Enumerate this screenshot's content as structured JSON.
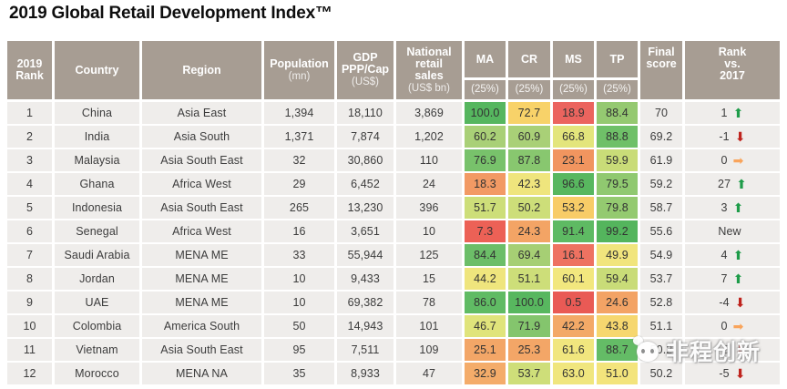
{
  "title": "2019 Global Retail Development Index™",
  "chart_data": {
    "type": "table",
    "title": "2019 Global Retail Development Index™",
    "columns": [
      {
        "label": "2019\nRank",
        "sub": ""
      },
      {
        "label": "Country",
        "sub": ""
      },
      {
        "label": "Region",
        "sub": ""
      },
      {
        "label": "Population",
        "sub": "(mn)"
      },
      {
        "label": "GDP\nPPP/Cap",
        "sub": "(US$)"
      },
      {
        "label": "National\nretail\nsales",
        "sub": "(US$ bn)"
      },
      {
        "label": "MA",
        "sub": "(25%)"
      },
      {
        "label": "CR",
        "sub": "(25%)"
      },
      {
        "label": "MS",
        "sub": "(25%)"
      },
      {
        "label": "TP",
        "sub": "(25%)"
      },
      {
        "label": "Final\nscore",
        "sub": ""
      },
      {
        "label": "Rank\nvs.\n2017",
        "sub": ""
      }
    ],
    "rows": [
      {
        "rank": "1",
        "country": "China",
        "region": "Asia East",
        "population": "1,394",
        "gdp": "18,110",
        "retail": "3,869",
        "scores": {
          "ma": {
            "value": "100.0",
            "color": "#56b65f"
          },
          "cr": {
            "value": "72.7",
            "color": "#f8d269"
          },
          "ms": {
            "value": "18.9",
            "color": "#eb645e"
          },
          "tp": {
            "value": "88.4",
            "color": "#95c971"
          }
        },
        "final": "70",
        "change": {
          "value": "1",
          "dir": "up"
        }
      },
      {
        "rank": "2",
        "country": "India",
        "region": "Asia South",
        "population": "1,371",
        "gdp": "7,874",
        "retail": "1,202",
        "scores": {
          "ma": {
            "value": "60.2",
            "color": "#a9d077"
          },
          "cr": {
            "value": "60.9",
            "color": "#a9d077"
          },
          "ms": {
            "value": "66.8",
            "color": "#e3e57c"
          },
          "tp": {
            "value": "88.8",
            "color": "#6fc068"
          }
        },
        "final": "69.2",
        "change": {
          "value": "-1",
          "dir": "down"
        }
      },
      {
        "rank": "3",
        "country": "Malaysia",
        "region": "Asia South East",
        "population": "32",
        "gdp": "30,860",
        "retail": "110",
        "scores": {
          "ma": {
            "value": "76.9",
            "color": "#78c26b"
          },
          "cr": {
            "value": "87.8",
            "color": "#88c76f"
          },
          "ms": {
            "value": "23.1",
            "color": "#f1955f"
          },
          "tp": {
            "value": "59.9",
            "color": "#c9dc78"
          }
        },
        "final": "61.9",
        "change": {
          "value": "0",
          "dir": "right"
        }
      },
      {
        "rank": "4",
        "country": "Ghana",
        "region": "Africa West",
        "population": "29",
        "gdp": "6,452",
        "retail": "24",
        "scores": {
          "ma": {
            "value": "18.3",
            "color": "#f29a64"
          },
          "cr": {
            "value": "42.3",
            "color": "#efe57d"
          },
          "ms": {
            "value": "96.6",
            "color": "#58b75f"
          },
          "tp": {
            "value": "79.5",
            "color": "#90c970"
          }
        },
        "final": "59.2",
        "change": {
          "value": "27",
          "dir": "up"
        }
      },
      {
        "rank": "5",
        "country": "Indonesia",
        "region": "Asia South East",
        "population": "265",
        "gdp": "13,230",
        "retail": "396",
        "scores": {
          "ma": {
            "value": "51.7",
            "color": "#cdde79"
          },
          "cr": {
            "value": "50.2",
            "color": "#cdde79"
          },
          "ms": {
            "value": "53.2",
            "color": "#f8cc67"
          },
          "tp": {
            "value": "79.8",
            "color": "#94ca70"
          }
        },
        "final": "58.7",
        "change": {
          "value": "3",
          "dir": "up"
        }
      },
      {
        "rank": "6",
        "country": "Senegal",
        "region": "Africa West",
        "population": "16",
        "gdp": "3,651",
        "retail": "10",
        "scores": {
          "ma": {
            "value": "7.3",
            "color": "#ec6156"
          },
          "cr": {
            "value": "24.3",
            "color": "#f3a465"
          },
          "ms": {
            "value": "91.4",
            "color": "#5eba63"
          },
          "tp": {
            "value": "99.2",
            "color": "#54b55d"
          }
        },
        "final": "55.6",
        "change": {
          "value": "New",
          "dir": "none"
        }
      },
      {
        "rank": "7",
        "country": "Saudi Arabia",
        "region": "MENA ME",
        "population": "33",
        "gdp": "55,944",
        "retail": "125",
        "scores": {
          "ma": {
            "value": "84.4",
            "color": "#6cbe68"
          },
          "cr": {
            "value": "69.4",
            "color": "#a6cf74"
          },
          "ms": {
            "value": "16.1",
            "color": "#ee7261"
          },
          "tp": {
            "value": "49.9",
            "color": "#f1e57d"
          }
        },
        "final": "54.9",
        "change": {
          "value": "4",
          "dir": "up"
        }
      },
      {
        "rank": "8",
        "country": "Jordan",
        "region": "MENA ME",
        "population": "10",
        "gdp": "9,433",
        "retail": "15",
        "scores": {
          "ma": {
            "value": "44.2",
            "color": "#efe57d"
          },
          "cr": {
            "value": "51.1",
            "color": "#cdde79"
          },
          "ms": {
            "value": "60.1",
            "color": "#f2e77e"
          },
          "tp": {
            "value": "59.4",
            "color": "#c9dc78"
          }
        },
        "final": "53.7",
        "change": {
          "value": "7",
          "dir": "up"
        }
      },
      {
        "rank": "9",
        "country": "UAE",
        "region": "MENA ME",
        "population": "10",
        "gdp": "69,382",
        "retail": "78",
        "scores": {
          "ma": {
            "value": "86.0",
            "color": "#60bb64"
          },
          "cr": {
            "value": "100.0",
            "color": "#58b75f"
          },
          "ms": {
            "value": "0.5",
            "color": "#e95a55"
          },
          "tp": {
            "value": "24.6",
            "color": "#f3a365"
          }
        },
        "final": "52.8",
        "change": {
          "value": "-4",
          "dir": "down"
        }
      },
      {
        "rank": "10",
        "country": "Colombia",
        "region": "America South",
        "population": "50",
        "gdp": "14,943",
        "retail": "101",
        "scores": {
          "ma": {
            "value": "46.7",
            "color": "#e0e47b"
          },
          "cr": {
            "value": "71.9",
            "color": "#84c56d"
          },
          "ms": {
            "value": "42.2",
            "color": "#f3a967"
          },
          "tp": {
            "value": "43.8",
            "color": "#f6d76f"
          }
        },
        "final": "51.1",
        "change": {
          "value": "0",
          "dir": "right"
        }
      },
      {
        "rank": "11",
        "country": "Vietnam",
        "region": "Asia South East",
        "population": "95",
        "gdp": "7,511",
        "retail": "109",
        "scores": {
          "ma": {
            "value": "25.1",
            "color": "#f3a667"
          },
          "cr": {
            "value": "25.3",
            "color": "#f3a667"
          },
          "ms": {
            "value": "61.6",
            "color": "#f1e67e"
          },
          "tp": {
            "value": "88.7",
            "color": "#64bc66"
          }
        },
        "final": "50.2",
        "change": {
          "value": "-5",
          "dir": "down"
        }
      },
      {
        "rank": "12",
        "country": "Morocco",
        "region": "MENA NA",
        "population": "35",
        "gdp": "8,933",
        "retail": "47",
        "scores": {
          "ma": {
            "value": "32.9",
            "color": "#f4ac6a"
          },
          "cr": {
            "value": "53.7",
            "color": "#cede79"
          },
          "ms": {
            "value": "63.0",
            "color": "#f0e67e"
          },
          "tp": {
            "value": "51.0",
            "color": "#f3e47c"
          }
        },
        "final": "50.2",
        "change": {
          "value": "-5",
          "dir": "down"
        }
      }
    ]
  },
  "icons": {
    "up": {
      "glyph": "⬆",
      "color": "#1e9c49",
      "name": "up-arrow"
    },
    "down": {
      "glyph": "⬇",
      "color": "#bf231d",
      "name": "down-arrow"
    },
    "right": {
      "glyph": "➡",
      "color": "#f9a45b",
      "name": "right-arrow"
    }
  },
  "watermark": {
    "text": "非程创新"
  },
  "colors": {
    "header_bg": "#a79d93",
    "row_bg": "#efedeb",
    "text": "#3c3c3c",
    "title_text": "#0e0e0e"
  }
}
